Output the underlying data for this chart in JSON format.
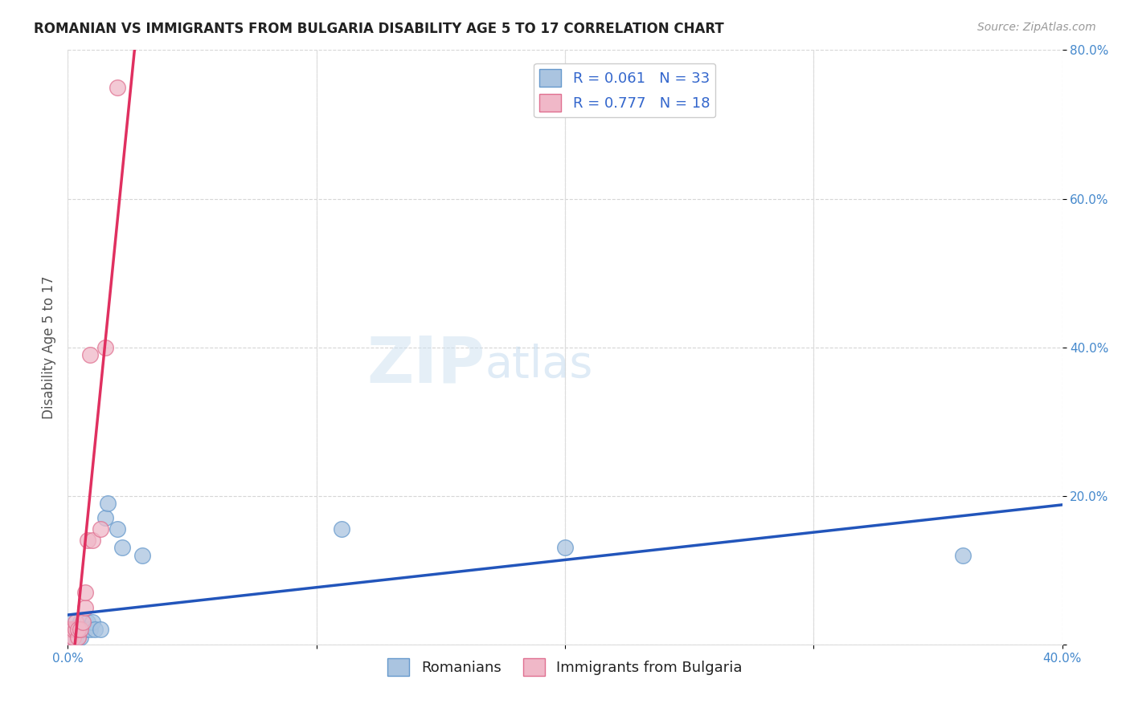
{
  "title": "ROMANIAN VS IMMIGRANTS FROM BULGARIA DISABILITY AGE 5 TO 17 CORRELATION CHART",
  "source": "Source: ZipAtlas.com",
  "ylabel": "Disability Age 5 to 17",
  "xlim": [
    0.0,
    0.4
  ],
  "ylim": [
    0.0,
    0.8
  ],
  "xticks": [
    0.0,
    0.1,
    0.2,
    0.3,
    0.4
  ],
  "yticks": [
    0.0,
    0.2,
    0.4,
    0.6,
    0.8
  ],
  "xticklabels": [
    "0.0%",
    "",
    "",
    "",
    "40.0%"
  ],
  "yticklabels": [
    "",
    "20.0%",
    "40.0%",
    "60.0%",
    "80.0%"
  ],
  "background_color": "#ffffff",
  "watermark_zip": "ZIP",
  "watermark_atlas": "atlas",
  "romanians_color": "#aac4e0",
  "romanians_edge_color": "#6699cc",
  "bulgaria_color": "#f0b8c8",
  "bulgaria_edge_color": "#e07090",
  "trend_romanian_color": "#2255bb",
  "trend_bulgaria_color": "#e03060",
  "trend_bulgarian_dash_color": "#d8a0b8",
  "R_romanian": 0.061,
  "N_romanian": 33,
  "R_bulgarian": 0.777,
  "N_bulgarian": 18,
  "romanians_x": [
    0.001,
    0.001,
    0.001,
    0.001,
    0.002,
    0.002,
    0.002,
    0.002,
    0.003,
    0.003,
    0.003,
    0.003,
    0.004,
    0.004,
    0.004,
    0.005,
    0.005,
    0.005,
    0.006,
    0.007,
    0.008,
    0.009,
    0.01,
    0.011,
    0.013,
    0.015,
    0.016,
    0.02,
    0.022,
    0.03,
    0.11,
    0.2,
    0.36
  ],
  "romanians_y": [
    0.02,
    0.02,
    0.01,
    0.03,
    0.02,
    0.01,
    0.02,
    0.01,
    0.02,
    0.01,
    0.01,
    0.02,
    0.01,
    0.02,
    0.02,
    0.02,
    0.01,
    0.03,
    0.02,
    0.02,
    0.03,
    0.02,
    0.03,
    0.02,
    0.02,
    0.17,
    0.19,
    0.155,
    0.13,
    0.12,
    0.155,
    0.13,
    0.12
  ],
  "bulgarian_x": [
    0.001,
    0.001,
    0.002,
    0.002,
    0.003,
    0.003,
    0.004,
    0.004,
    0.005,
    0.006,
    0.007,
    0.007,
    0.008,
    0.009,
    0.01,
    0.013,
    0.015,
    0.02
  ],
  "bulgarian_y": [
    0.01,
    0.02,
    0.01,
    0.02,
    0.02,
    0.03,
    0.01,
    0.02,
    0.02,
    0.03,
    0.05,
    0.07,
    0.14,
    0.39,
    0.14,
    0.155,
    0.4,
    0.75
  ],
  "title_fontsize": 12,
  "tick_fontsize": 11,
  "label_fontsize": 12,
  "marker_size": 200
}
